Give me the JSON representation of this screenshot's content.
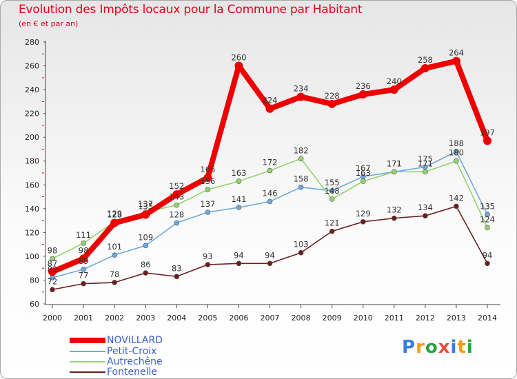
{
  "chart_data": {
    "type": "line",
    "title": "Evolution des Impôts locaux pour la Commune par Habitant",
    "subtitle": "(en € et par an)",
    "x": [
      "2000",
      "2001",
      "2002",
      "2003",
      "2004",
      "2005",
      "2006",
      "2007",
      "2008",
      "2009",
      "2010",
      "2011",
      "2012",
      "2013",
      "2014"
    ],
    "ylim": [
      60,
      280
    ],
    "yticks": [
      60,
      80,
      100,
      120,
      140,
      160,
      180,
      200,
      220,
      240,
      260,
      280
    ],
    "grid": false,
    "series": [
      {
        "name": "Fontenelle",
        "color": "#6e1e1e",
        "values": [
          72,
          77,
          78,
          86,
          83,
          93,
          94,
          94,
          103,
          121,
          129,
          132,
          134,
          142,
          94
        ]
      },
      {
        "name": "Petit-Croix",
        "color": "#6fa8dc",
        "values": [
          82,
          89,
          101,
          109,
          128,
          137,
          141,
          146,
          158,
          155,
          167,
          171,
          175,
          188,
          135
        ]
      },
      {
        "name": "Autrechêne",
        "color": "#93d36f",
        "values": [
          98,
          111,
          129,
          137,
          143,
          156,
          163,
          172,
          182,
          148,
          163,
          171,
          171,
          180,
          124
        ]
      },
      {
        "name": "NOVILLARD",
        "color": "#ee0000",
        "values": [
          87,
          98,
          128,
          135,
          152,
          166,
          260,
          224,
          234,
          228,
          236,
          240,
          258,
          264,
          197
        ]
      }
    ]
  },
  "legend": {
    "items": [
      {
        "name": "NOVILLARD",
        "color": "#ee0000"
      },
      {
        "name": "Petit-Croix",
        "color": "#6fa8dc"
      },
      {
        "name": "Autrechêne",
        "color": "#93d36f"
      },
      {
        "name": "Fontenelle",
        "color": "#6e1e1e"
      }
    ]
  },
  "brand": {
    "letters": [
      "P",
      "r",
      "o",
      "x",
      "i",
      "t",
      "i"
    ],
    "colors": [
      "#3b7ddd",
      "#f39c12",
      "#2ea043",
      "#e74c3c",
      "#3b7ddd",
      "#f39c12",
      "#2ea043"
    ]
  }
}
